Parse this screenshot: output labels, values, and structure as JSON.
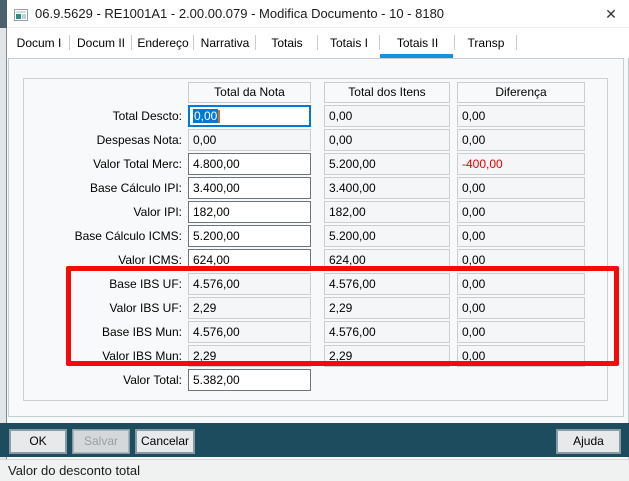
{
  "window": {
    "title": "06.9.5629 - RE1001A1 - 2.00.00.079 - Modifica Documento - 10 - 8180",
    "close_icon": "✕"
  },
  "tabs": [
    {
      "label": "Docum I",
      "selected": false
    },
    {
      "label": "Docum II",
      "selected": false
    },
    {
      "label": "Endereço",
      "selected": false
    },
    {
      "label": "Narrativa",
      "selected": false
    },
    {
      "label": "Totais",
      "selected": false
    },
    {
      "label": "Totais I",
      "selected": false
    },
    {
      "label": "Totais II",
      "selected": true
    },
    {
      "label": "Transp",
      "selected": false
    }
  ],
  "totals_table": {
    "columns": [
      "Total da Nota",
      "Total dos Itens",
      "Diferença"
    ],
    "rows": [
      {
        "label": "Total Descto:",
        "nota": "0,00",
        "itens": "0,00",
        "diferenca": "0,00",
        "nota_state": "focused",
        "highlighted": false
      },
      {
        "label": "Despesas Nota:",
        "nota": "0,00",
        "itens": "0,00",
        "diferenca": "0,00",
        "nota_state": "readonly",
        "highlighted": false
      },
      {
        "label": "Valor Total Merc:",
        "nota": "4.800,00",
        "itens": "5.200,00",
        "diferenca": "-400,00",
        "nota_state": "editable",
        "highlighted": false,
        "diferenca_negative": true
      },
      {
        "label": "Base Cálculo IPI:",
        "nota": "3.400,00",
        "itens": "3.400,00",
        "diferenca": "0,00",
        "nota_state": "editable",
        "highlighted": false
      },
      {
        "label": "Valor IPI:",
        "nota": "182,00",
        "itens": "182,00",
        "diferenca": "0,00",
        "nota_state": "editable",
        "highlighted": false
      },
      {
        "label": "Base Cálculo ICMS:",
        "nota": "5.200,00",
        "itens": "5.200,00",
        "diferenca": "0,00",
        "nota_state": "editable",
        "highlighted": false
      },
      {
        "label": "Valor ICMS:",
        "nota": "624,00",
        "itens": "624,00",
        "diferenca": "0,00",
        "nota_state": "editable",
        "highlighted": false
      },
      {
        "label": "Base IBS UF:",
        "nota": "4.576,00",
        "itens": "4.576,00",
        "diferenca": "0,00",
        "nota_state": "readonly",
        "highlighted": true
      },
      {
        "label": "Valor IBS UF:",
        "nota": "2,29",
        "itens": "2,29",
        "diferenca": "0,00",
        "nota_state": "readonly",
        "highlighted": true
      },
      {
        "label": "Base IBS Mun:",
        "nota": "4.576,00",
        "itens": "4.576,00",
        "diferenca": "0,00",
        "nota_state": "readonly",
        "highlighted": true
      },
      {
        "label": "Valor IBS Mun:",
        "nota": "2,29",
        "itens": "2,29",
        "diferenca": "0,00",
        "nota_state": "readonly",
        "highlighted": true
      },
      {
        "label": "Valor Total:",
        "nota": "5.382,00",
        "itens": null,
        "diferenca": null,
        "nota_state": "editable",
        "highlighted": false
      }
    ]
  },
  "buttons": {
    "ok": "OK",
    "salvar": "Salvar",
    "salvar_disabled": true,
    "cancelar": "Cancelar",
    "ajuda": "Ajuda"
  },
  "status_bar": {
    "text": "Valor do desconto total"
  },
  "colors": {
    "tab_accent": "#1591de",
    "button_bar": "#1d4c5f",
    "negative_value": "#e60000",
    "selection": "#0078d7",
    "annotation": "#f50a0a"
  }
}
